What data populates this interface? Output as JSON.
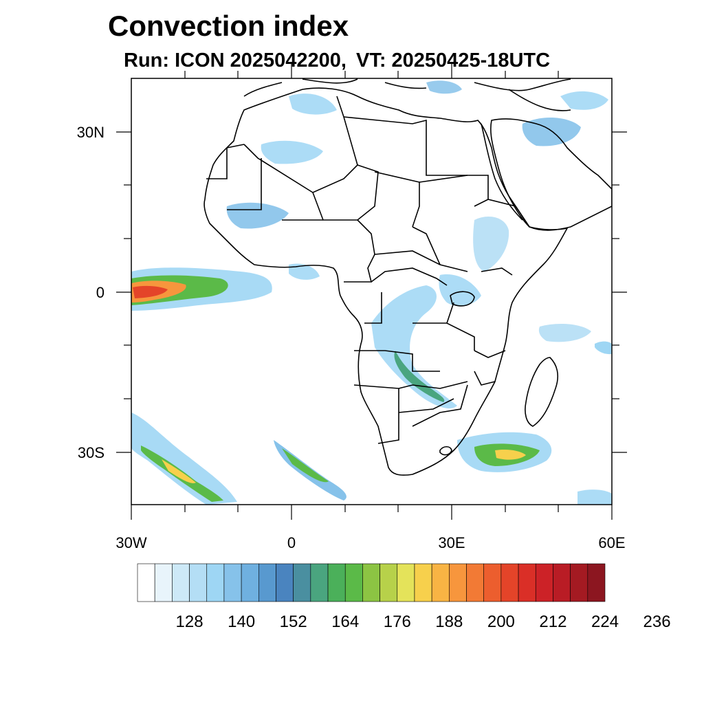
{
  "title": "Convection index",
  "subtitle": {
    "run": "Run: ICON 2025042200,",
    "vt": "VT: 20250425-18UTC"
  },
  "map": {
    "extent": {
      "lon": [
        -30,
        60
      ],
      "lat": [
        -40,
        40
      ]
    },
    "lon_labels": [
      "30W",
      "0",
      "30E",
      "60E"
    ],
    "lat_labels": [
      "30N",
      "0",
      "30S"
    ]
  },
  "colorbar": {
    "labels": [
      "128",
      "140",
      "152",
      "164",
      "176",
      "188",
      "200",
      "212",
      "224",
      "236"
    ],
    "colors": [
      "#ffffff",
      "#e8f4fb",
      "#cde9f7",
      "#b4def5",
      "#9ed6f4",
      "#86c2ea",
      "#6fb0e0",
      "#5899cf",
      "#4a84bf",
      "#4a8fa0",
      "#4aa57f",
      "#4bb05a",
      "#5bba48",
      "#8cc443",
      "#b7d14a",
      "#e4e35a",
      "#f7d04c",
      "#f8b444",
      "#f7963d",
      "#f27a35",
      "#ec5e2e",
      "#e44429",
      "#da2f27",
      "#cc2227",
      "#b91c25",
      "#a41a22",
      "#8c1620"
    ]
  }
}
